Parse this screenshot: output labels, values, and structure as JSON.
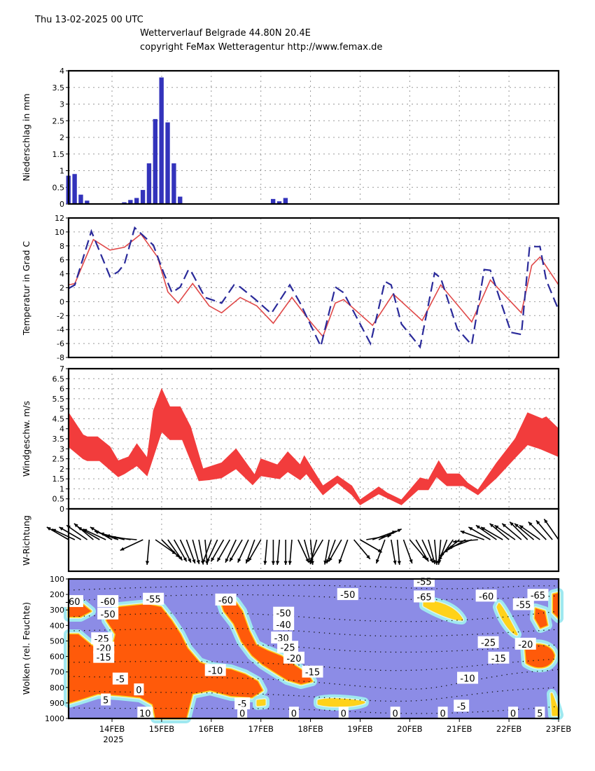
{
  "header": {
    "run": "Thu 13-02-2025 00 UTC",
    "title": "Wetterverlauf Belgrade  44.80N 20.4E",
    "copyright": "copyright FeMax Wetteragentur http://www.femax.de"
  },
  "x_axis": {
    "ticks": [
      "14FEB",
      "15FEB",
      "16FEB",
      "17FEB",
      "18FEB",
      "19FEB",
      "20FEB",
      "21FEB",
      "22FEB",
      "23FEB"
    ],
    "year": "2025"
  },
  "chart_data": [
    {
      "type": "bar",
      "ylabel": "Niederschlag in mm",
      "ylim": [
        0,
        4
      ],
      "yticks": [
        "0",
        "0.5",
        "1",
        "1.5",
        "2",
        "2.5",
        "3",
        "3.5",
        "4"
      ],
      "color": "#3333bb",
      "start": "2025-02-13T03",
      "step_hours": 3,
      "values": [
        0.85,
        0.9,
        0.28,
        0.1,
        0,
        0,
        0,
        0,
        0,
        0.05,
        0.12,
        0.18,
        0.42,
        1.22,
        2.55,
        3.8,
        2.45,
        1.22,
        0.22,
        0,
        0,
        0,
        0,
        0,
        0,
        0,
        0,
        0,
        0,
        0,
        0,
        0,
        0,
        0.15,
        0.08,
        0.18,
        0,
        0,
        0,
        0,
        0,
        0,
        0,
        0,
        0,
        0,
        0,
        0,
        0,
        0,
        0,
        0,
        0,
        0,
        0,
        0,
        0,
        0,
        0,
        0,
        0,
        0,
        0,
        0,
        0,
        0,
        0,
        0,
        0,
        0,
        0,
        0,
        0,
        0,
        0,
        0,
        0,
        0,
        0,
        0
      ],
      "grid": true
    },
    {
      "type": "line",
      "ylabel": "Temperatur in Grad C",
      "ylim": [
        -8,
        12
      ],
      "yticks": [
        "-8",
        "-6",
        "-4",
        "-2",
        "0",
        "2",
        "4",
        "6",
        "8",
        "10",
        "12"
      ],
      "grid": true,
      "series": [
        {
          "style": "solid",
          "color": "#e04848",
          "points": [
            [
              "2025-02-13T03",
              2.4
            ],
            [
              "2025-02-13T06",
              2.6
            ],
            [
              "2025-02-13T15",
              8.9
            ],
            [
              "2025-02-13T23",
              7.4
            ],
            [
              "2025-02-14T06",
              7.8
            ],
            [
              "2025-02-14T14",
              9.7
            ],
            [
              "2025-02-14T22",
              6.4
            ],
            [
              "2025-02-15T03",
              1.4
            ],
            [
              "2025-02-15T08",
              -0.2
            ],
            [
              "2025-02-15T15",
              2.6
            ],
            [
              "2025-02-15T23",
              -0.6
            ],
            [
              "2025-02-16T05",
              -1.6
            ],
            [
              "2025-02-16T14",
              0.6
            ],
            [
              "2025-02-16T22",
              -0.6
            ],
            [
              "2025-02-17T06",
              -3.1
            ],
            [
              "2025-02-17T15",
              0.6
            ],
            [
              "2025-02-18T00",
              -2.9
            ],
            [
              "2025-02-18T06",
              -5.0
            ],
            [
              "2025-02-18T12",
              -0.2
            ],
            [
              "2025-02-18T16",
              0.3
            ],
            [
              "2025-02-19T06",
              -3.4
            ],
            [
              "2025-02-19T16",
              1.1
            ],
            [
              "2025-02-20T06",
              -2.7
            ],
            [
              "2025-02-20T15",
              2.4
            ],
            [
              "2025-02-21T06",
              -2.9
            ],
            [
              "2025-02-21T15",
              3.1
            ],
            [
              "2025-02-22T06",
              -1.6
            ],
            [
              "2025-02-22T11",
              5.2
            ],
            [
              "2025-02-22T15",
              6.4
            ],
            [
              "2025-02-23T00",
              2.4
            ]
          ]
        },
        {
          "style": "dashed",
          "color": "#2a2a9a",
          "points": [
            [
              "2025-02-13T03",
              1.9
            ],
            [
              "2025-02-13T06",
              2.4
            ],
            [
              "2025-02-13T14",
              10.1
            ],
            [
              "2025-02-13T23",
              3.6
            ],
            [
              "2025-02-14T03",
              4.3
            ],
            [
              "2025-02-14T06",
              5.4
            ],
            [
              "2025-02-14T11",
              10.6
            ],
            [
              "2025-02-14T20",
              8.1
            ],
            [
              "2025-02-15T01",
              4.1
            ],
            [
              "2025-02-15T05",
              1.3
            ],
            [
              "2025-02-15T09",
              2.1
            ],
            [
              "2025-02-15T13",
              4.6
            ],
            [
              "2025-02-15T14",
              4.5
            ],
            [
              "2025-02-15T21",
              0.6
            ],
            [
              "2025-02-16T05",
              -0.2
            ],
            [
              "2025-02-16T11",
              2.4
            ],
            [
              "2025-02-16T14",
              2.1
            ],
            [
              "2025-02-16T21",
              0.4
            ],
            [
              "2025-02-17T05",
              -1.7
            ],
            [
              "2025-02-17T14",
              2.4
            ],
            [
              "2025-02-17T19",
              -0.2
            ],
            [
              "2025-02-18T05",
              -6.4
            ],
            [
              "2025-02-18T12",
              2.1
            ],
            [
              "2025-02-18T16",
              1.3
            ],
            [
              "2025-02-19T05",
              -6.0
            ],
            [
              "2025-02-19T12",
              2.9
            ],
            [
              "2025-02-19T15",
              2.4
            ],
            [
              "2025-02-19T20",
              -3.2
            ],
            [
              "2025-02-20T05",
              -6.5
            ],
            [
              "2025-02-20T12",
              4.1
            ],
            [
              "2025-02-20T15",
              3.4
            ],
            [
              "2025-02-20T23",
              -3.9
            ],
            [
              "2025-02-21T06",
              -6.2
            ],
            [
              "2025-02-21T12",
              4.6
            ],
            [
              "2025-02-21T15",
              4.5
            ],
            [
              "2025-02-21T21",
              -0.9
            ],
            [
              "2025-02-22T01",
              -4.4
            ],
            [
              "2025-02-22T06",
              -4.7
            ],
            [
              "2025-02-22T10",
              7.9
            ],
            [
              "2025-02-22T15",
              7.9
            ],
            [
              "2025-02-22T18",
              3.1
            ],
            [
              "2025-02-23T00",
              -1.2
            ]
          ]
        }
      ]
    },
    {
      "type": "area",
      "ylabel": "Windgeschw. m/s",
      "ylim": [
        0,
        7
      ],
      "yticks": [
        "0",
        "0.5",
        "1",
        "1.5",
        "2",
        "2.5",
        "3",
        "3.5",
        "4",
        "4.5",
        "5",
        "5.5",
        "6",
        "6.5",
        "7"
      ],
      "grid": true,
      "color": "#f23c3c",
      "upper": [
        [
          "2025-02-13T03",
          4.8
        ],
        [
          "2025-02-13T10",
          3.7
        ],
        [
          "2025-02-13T12",
          3.6
        ],
        [
          "2025-02-13T17",
          3.6
        ],
        [
          "2025-02-13T23",
          3.1
        ],
        [
          "2025-02-14T03",
          2.4
        ],
        [
          "2025-02-14T08",
          2.6
        ],
        [
          "2025-02-14T12",
          3.25
        ],
        [
          "2025-02-14T17",
          2.55
        ],
        [
          "2025-02-14T20",
          4.9
        ],
        [
          "2025-02-15T00",
          6.0
        ],
        [
          "2025-02-15T04",
          5.1
        ],
        [
          "2025-02-15T09",
          5.1
        ],
        [
          "2025-02-15T14",
          4.1
        ],
        [
          "2025-02-15T20",
          2.0
        ],
        [
          "2025-02-16T05",
          2.3
        ],
        [
          "2025-02-16T12",
          3.0
        ],
        [
          "2025-02-16T21",
          1.7
        ],
        [
          "2025-02-17T00",
          2.5
        ],
        [
          "2025-02-17T08",
          2.2
        ],
        [
          "2025-02-17T13",
          2.85
        ],
        [
          "2025-02-17T19",
          2.2
        ],
        [
          "2025-02-17T21",
          2.65
        ],
        [
          "2025-02-18T06",
          1.15
        ],
        [
          "2025-02-18T13",
          1.65
        ],
        [
          "2025-02-18T20",
          1.15
        ],
        [
          "2025-02-19T00",
          0.45
        ],
        [
          "2025-02-19T09",
          1.1
        ],
        [
          "2025-02-19T13",
          0.8
        ],
        [
          "2025-02-19T20",
          0.45
        ],
        [
          "2025-02-20T05",
          1.55
        ],
        [
          "2025-02-20T09",
          1.45
        ],
        [
          "2025-02-20T14",
          2.4
        ],
        [
          "2025-02-20T18",
          1.75
        ],
        [
          "2025-02-21T00",
          1.75
        ],
        [
          "2025-02-21T04",
          1.3
        ],
        [
          "2025-02-21T09",
          0.95
        ],
        [
          "2025-02-21T18",
          2.3
        ],
        [
          "2025-02-22T03",
          3.5
        ],
        [
          "2025-02-22T09",
          4.8
        ],
        [
          "2025-02-22T16",
          4.5
        ],
        [
          "2025-02-22T18",
          4.6
        ],
        [
          "2025-02-23T00",
          4.0
        ]
      ],
      "lower": [
        [
          "2025-02-13T03",
          3.1
        ],
        [
          "2025-02-13T10",
          2.5
        ],
        [
          "2025-02-13T12",
          2.4
        ],
        [
          "2025-02-13T18",
          2.4
        ],
        [
          "2025-02-14T03",
          1.6
        ],
        [
          "2025-02-14T06",
          1.75
        ],
        [
          "2025-02-14T12",
          2.15
        ],
        [
          "2025-02-14T17",
          1.65
        ],
        [
          "2025-02-15T00",
          3.85
        ],
        [
          "2025-02-15T04",
          3.45
        ],
        [
          "2025-02-15T10",
          3.45
        ],
        [
          "2025-02-15T18",
          1.4
        ],
        [
          "2025-02-15T23",
          1.45
        ],
        [
          "2025-02-16T05",
          1.55
        ],
        [
          "2025-02-16T12",
          2.0
        ],
        [
          "2025-02-16T20",
          1.2
        ],
        [
          "2025-02-17T00",
          1.65
        ],
        [
          "2025-02-17T09",
          1.5
        ],
        [
          "2025-02-17T13",
          1.85
        ],
        [
          "2025-02-17T19",
          1.45
        ],
        [
          "2025-02-17T22",
          1.75
        ],
        [
          "2025-02-18T06",
          0.7
        ],
        [
          "2025-02-18T13",
          1.3
        ],
        [
          "2025-02-18T20",
          0.7
        ],
        [
          "2025-02-19T00",
          0.2
        ],
        [
          "2025-02-19T09",
          0.75
        ],
        [
          "2025-02-19T20",
          0.2
        ],
        [
          "2025-02-20T04",
          0.95
        ],
        [
          "2025-02-20T09",
          0.95
        ],
        [
          "2025-02-20T13",
          1.6
        ],
        [
          "2025-02-20T18",
          1.15
        ],
        [
          "2025-02-21T02",
          1.15
        ],
        [
          "2025-02-21T09",
          0.7
        ],
        [
          "2025-02-21T18",
          1.55
        ],
        [
          "2025-02-22T03",
          2.55
        ],
        [
          "2025-02-22T09",
          3.2
        ],
        [
          "2025-02-22T15",
          3.0
        ],
        [
          "2025-02-23T00",
          2.6
        ]
      ]
    },
    {
      "type": "vector",
      "ylabel": "W-Richtung",
      "start": "2025-02-13T03",
      "step_hours": 3,
      "arrow_direction_deg": [
        300,
        295,
        300,
        305,
        310,
        300,
        295,
        300,
        290,
        285,
        280,
        275,
        245,
        185,
        125,
        135,
        145,
        150,
        155,
        160,
        165,
        170,
        175,
        200,
        205,
        210,
        210,
        205,
        210,
        205,
        200,
        210,
        185,
        180,
        185,
        180,
        185,
        155,
        165,
        175,
        195,
        210,
        190,
        200,
        210,
        200,
        140,
        120,
        80,
        70,
        65,
        200,
        170,
        175,
        160,
        140,
        150,
        155,
        165,
        175,
        185,
        200,
        215,
        230,
        240,
        250,
        265,
        290,
        300,
        305,
        300,
        310,
        305,
        310,
        315,
        310,
        305,
        315,
        320,
        325
      ]
    },
    {
      "type": "heatmap",
      "ylabel": "Wolken (rel. Feuchte)",
      "ylim": [
        1000,
        100
      ],
      "yticks": [
        "100",
        "200",
        "300",
        "400",
        "500",
        "600",
        "700",
        "800",
        "900",
        "1000"
      ],
      "colors": {
        "background": "#8c8ce6",
        "low": "#9fe8f0",
        "mid": "#ffd21a",
        "high": "#ff5a0a"
      },
      "contour_labels": [
        {
          "text": "-60",
          "time": "2025-02-13T05",
          "p": 245
        },
        {
          "text": "-60",
          "time": "2025-02-13T22",
          "p": 245
        },
        {
          "text": "-50",
          "time": "2025-02-13T22",
          "p": 325
        },
        {
          "text": "-55",
          "time": "2025-02-14T20",
          "p": 230
        },
        {
          "text": "-25",
          "time": "2025-02-13T19",
          "p": 485
        },
        {
          "text": "-20",
          "time": "2025-02-13T20",
          "p": 545
        },
        {
          "text": "-15",
          "time": "2025-02-13T20",
          "p": 605
        },
        {
          "text": "-5",
          "time": "2025-02-14T04",
          "p": 745
        },
        {
          "text": "0",
          "time": "2025-02-14T13",
          "p": 815
        },
        {
          "text": "5",
          "time": "2025-02-13T21",
          "p": 880
        },
        {
          "text": "10",
          "time": "2025-02-14T16",
          "p": 965
        },
        {
          "text": "-10",
          "time": "2025-02-16T02",
          "p": 690
        },
        {
          "text": "-60",
          "time": "2025-02-16T07",
          "p": 235
        },
        {
          "text": "-50",
          "time": "2025-02-17T11",
          "p": 320
        },
        {
          "text": "-40",
          "time": "2025-02-17T11",
          "p": 395
        },
        {
          "text": "-30",
          "time": "2025-02-17T10",
          "p": 480
        },
        {
          "text": "-25",
          "time": "2025-02-17T13",
          "p": 540
        },
        {
          "text": "-20",
          "time": "2025-02-17T16",
          "p": 610
        },
        {
          "text": "-15",
          "time": "2025-02-18T01",
          "p": 700
        },
        {
          "text": "-5",
          "time": "2025-02-16T15",
          "p": 905
        },
        {
          "text": "0",
          "time": "2025-02-16T15",
          "p": 965
        },
        {
          "text": "0",
          "time": "2025-02-17T16",
          "p": 965
        },
        {
          "text": "0",
          "time": "2025-02-18T16",
          "p": 965
        },
        {
          "text": "-50",
          "time": "2025-02-18T18",
          "p": 200
        },
        {
          "text": "0",
          "time": "2025-02-19T17",
          "p": 965
        },
        {
          "text": "-55",
          "time": "2025-02-20T07",
          "p": 115
        },
        {
          "text": "-65",
          "time": "2025-02-20T07",
          "p": 215
        },
        {
          "text": "-5",
          "time": "2025-02-21T01",
          "p": 920
        },
        {
          "text": "0",
          "time": "2025-02-20T16",
          "p": 965
        },
        {
          "text": "-10",
          "time": "2025-02-21T04",
          "p": 740
        },
        {
          "text": "-60",
          "time": "2025-02-21T13",
          "p": 210
        },
        {
          "text": "-25",
          "time": "2025-02-21T14",
          "p": 510
        },
        {
          "text": "-15",
          "time": "2025-02-21T19",
          "p": 610
        },
        {
          "text": "-20",
          "time": "2025-02-22T08",
          "p": 520
        },
        {
          "text": "-55",
          "time": "2025-02-22T07",
          "p": 265
        },
        {
          "text": "-65",
          "time": "2025-02-22T14",
          "p": 205
        },
        {
          "text": "0",
          "time": "2025-02-22T02",
          "p": 965
        },
        {
          "text": "5",
          "time": "2025-02-22T15",
          "p": 965
        }
      ]
    }
  ]
}
